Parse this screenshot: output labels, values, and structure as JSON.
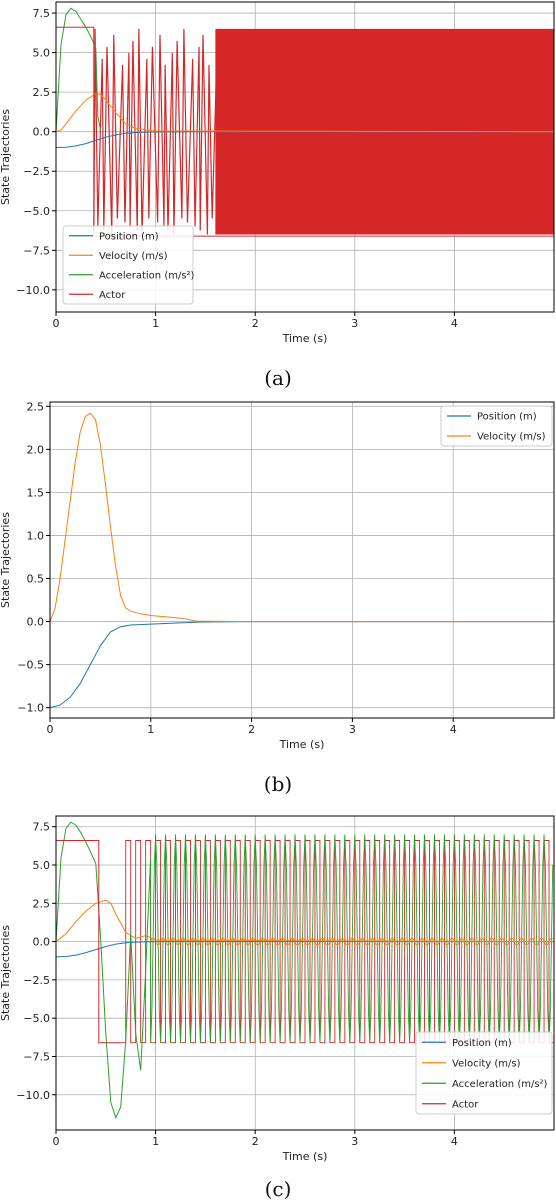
{
  "chart_data": [
    {
      "type": "line",
      "caption": "(a)",
      "xlabel": "Time (s)",
      "ylabel": "State Trajectories",
      "xlim": [
        0,
        5
      ],
      "ylim": [
        -11.4,
        8.2
      ],
      "xticks": [
        0,
        1,
        2,
        3,
        4
      ],
      "xtick_labels": [
        "0",
        "1",
        "2",
        "3",
        "4"
      ],
      "yticks": [
        -10,
        -7.5,
        -5,
        -2.5,
        0,
        2.5,
        5,
        7.5
      ],
      "ytick_labels": [
        "−10.0",
        "−7.5",
        "−5.0",
        "−2.5",
        "0.0",
        "2.5",
        "5.0",
        "7.5"
      ],
      "grid": true,
      "legend_position": "lower-left",
      "series": [
        {
          "name": "Position (m)",
          "color": "#1f77b4",
          "x": [
            0,
            0.1,
            0.2,
            0.3,
            0.4,
            0.5,
            0.6,
            0.7,
            0.8,
            1.0,
            1.5,
            2.0,
            5.0
          ],
          "y": [
            -1.0,
            -0.98,
            -0.9,
            -0.75,
            -0.55,
            -0.35,
            -0.2,
            -0.1,
            -0.05,
            -0.02,
            0,
            0,
            0
          ]
        },
        {
          "name": "Velocity (m/s)",
          "color": "#ff7f0e",
          "x": [
            0,
            0.05,
            0.1,
            0.2,
            0.3,
            0.4,
            0.45,
            0.5,
            0.6,
            0.7,
            0.8,
            1.0,
            5.0
          ],
          "y": [
            0,
            0.1,
            0.5,
            1.3,
            2.0,
            2.4,
            2.35,
            2.0,
            1.2,
            0.5,
            0.2,
            0.05,
            0
          ]
        },
        {
          "name": "Acceleration (m/s²)",
          "color": "#2ca02c",
          "x": [
            0,
            0.05,
            0.1,
            0.15,
            0.2,
            0.25,
            0.3,
            0.35,
            0.4,
            0.42,
            0.45
          ],
          "y": [
            0,
            5.5,
            7.4,
            7.8,
            7.6,
            7.1,
            6.6,
            6.0,
            5.3,
            1.0,
            0
          ]
        },
        {
          "name": "Actor",
          "color": "#d62728",
          "x": [
            0,
            0.38,
            0.38,
            5.0
          ],
          "y": [
            6.6,
            6.6,
            -6.6,
            -6.6
          ]
        }
      ]
    },
    {
      "type": "line",
      "caption": "(b)",
      "xlabel": "Time (s)",
      "ylabel": "State Trajectories",
      "xlim": [
        0,
        5
      ],
      "ylim": [
        -1.12,
        2.55
      ],
      "xticks": [
        0,
        1,
        2,
        3,
        4
      ],
      "xtick_labels": [
        "0",
        "1",
        "2",
        "3",
        "4"
      ],
      "yticks": [
        -1.0,
        -0.5,
        0.0,
        0.5,
        1.0,
        1.5,
        2.0,
        2.5
      ],
      "ytick_labels": [
        "−1.0",
        "−0.5",
        "0.0",
        "0.5",
        "1.0",
        "1.5",
        "2.0",
        "2.5"
      ],
      "grid": true,
      "legend_position": "top-right",
      "series": [
        {
          "name": "Position (m)",
          "color": "#1f77b4",
          "x": [
            0,
            0.1,
            0.2,
            0.3,
            0.4,
            0.5,
            0.6,
            0.7,
            0.8,
            1.0,
            1.2,
            1.5,
            2.0,
            5.0
          ],
          "y": [
            -1.0,
            -0.97,
            -0.88,
            -0.72,
            -0.5,
            -0.28,
            -0.12,
            -0.06,
            -0.04,
            -0.03,
            -0.02,
            -0.005,
            0,
            0
          ]
        },
        {
          "name": "Velocity (m/s)",
          "color": "#ff7f0e",
          "x": [
            0,
            0.05,
            0.1,
            0.15,
            0.2,
            0.25,
            0.3,
            0.35,
            0.4,
            0.45,
            0.5,
            0.55,
            0.6,
            0.65,
            0.7,
            0.75,
            0.8,
            0.9,
            1.0,
            1.2,
            1.35,
            1.45,
            2.0,
            5.0
          ],
          "y": [
            0,
            0.15,
            0.5,
            0.95,
            1.4,
            1.85,
            2.2,
            2.38,
            2.42,
            2.35,
            2.05,
            1.6,
            1.1,
            0.65,
            0.3,
            0.16,
            0.12,
            0.09,
            0.07,
            0.05,
            0.03,
            0.005,
            0,
            0
          ]
        }
      ]
    },
    {
      "type": "line",
      "caption": "(c)",
      "xlabel": "Time (s)",
      "ylabel": "State Trajectories",
      "xlim": [
        0,
        5
      ],
      "ylim": [
        -12.3,
        8.2
      ],
      "xticks": [
        0,
        1,
        2,
        3,
        4
      ],
      "xtick_labels": [
        "0",
        "1",
        "2",
        "3",
        "4"
      ],
      "yticks": [
        -10,
        -7.5,
        -5,
        -2.5,
        0,
        2.5,
        5,
        7.5
      ],
      "ytick_labels": [
        "−10.0",
        "−7.5",
        "−5.0",
        "−2.5",
        "0.0",
        "2.5",
        "5.0",
        "7.5"
      ],
      "grid": true,
      "legend_position": "lower-right",
      "series": [
        {
          "name": "Position (m)",
          "color": "#1f77b4",
          "x": [
            0,
            0.1,
            0.2,
            0.3,
            0.4,
            0.5,
            0.6,
            0.7,
            0.8,
            1.0,
            5.0
          ],
          "y": [
            -1.0,
            -0.97,
            -0.88,
            -0.72,
            -0.52,
            -0.32,
            -0.16,
            -0.07,
            -0.03,
            0,
            0
          ]
        },
        {
          "name": "Velocity (m/s)",
          "color": "#ff7f0e",
          "x": [
            0,
            0.1,
            0.2,
            0.3,
            0.4,
            0.5,
            0.55,
            0.6,
            0.7,
            0.8,
            0.9,
            1.0,
            5.0
          ],
          "y": [
            0,
            0.5,
            1.3,
            2.0,
            2.5,
            2.7,
            2.5,
            1.8,
            0.6,
            0.2,
            0.4,
            0.1,
            0
          ]
        },
        {
          "name": "Acceleration (m/s²)",
          "color": "#2ca02c",
          "x": [
            0,
            0.05,
            0.1,
            0.15,
            0.2,
            0.25,
            0.3,
            0.35,
            0.4,
            0.45,
            0.5,
            0.55,
            0.6,
            0.65,
            0.7,
            0.75,
            0.8,
            0.85,
            0.9,
            0.95
          ],
          "y": [
            0,
            5.5,
            7.4,
            7.8,
            7.6,
            7.1,
            6.5,
            5.8,
            5.1,
            0,
            -6,
            -10.5,
            -11.5,
            -10.8,
            -6.5,
            0.5,
            -6,
            -8.4,
            -2,
            5.5
          ]
        },
        {
          "name": "Actor",
          "color": "#d62728",
          "x": [
            0,
            0.43,
            0.43,
            0.65,
            0.65
          ],
          "y": [
            6.6,
            6.6,
            -6.6,
            -6.6,
            -6.6
          ]
        }
      ]
    }
  ]
}
